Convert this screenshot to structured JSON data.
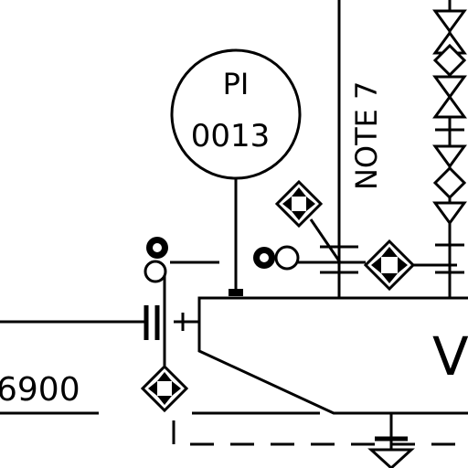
{
  "instrument": {
    "type": "PI",
    "tag": "0013"
  },
  "note_label": "NOTE 7",
  "line_number": "6900",
  "vessel_label": "V"
}
